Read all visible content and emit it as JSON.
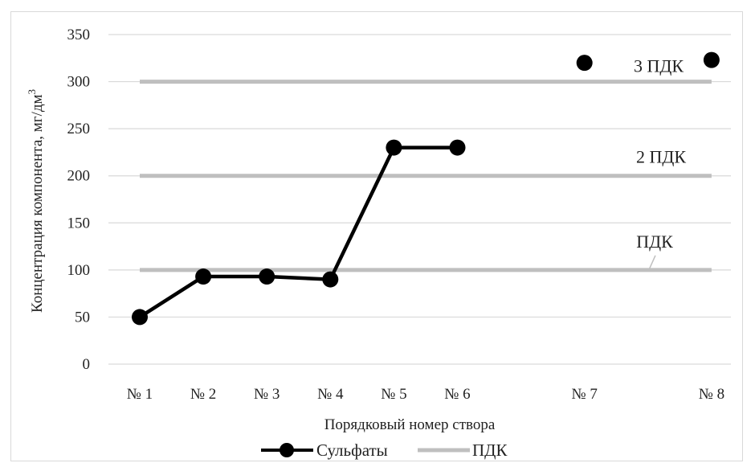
{
  "chart_data": {
    "type": "line",
    "categories": [
      "№ 1",
      "№ 2",
      "№ 3",
      "№ 4",
      "№ 5",
      "№ 6",
      "№ 7",
      "№ 8"
    ],
    "x_positions": [
      1,
      2,
      3,
      4,
      5,
      6,
      8,
      10
    ],
    "xlabel": "Порядковый номер створа",
    "ylabel_main": "Концентрация  компонента, мг/дм",
    "ylabel_sup": "3",
    "ylim": [
      0,
      350
    ],
    "yticks": [
      0,
      50,
      100,
      150,
      200,
      250,
      300,
      350
    ],
    "grid": true,
    "legend_position": "bottom",
    "series": [
      {
        "name": "Сульфаты",
        "color": "#000000",
        "points": [
          {
            "cat": "№ 1",
            "y": 50
          },
          {
            "cat": "№ 2",
            "y": 93
          },
          {
            "cat": "№ 3",
            "y": 93
          },
          {
            "cat": "№ 4",
            "y": 90
          },
          {
            "cat": "№ 5",
            "y": 230
          },
          {
            "cat": "№ 6",
            "y": 230
          },
          {
            "cat": "№ 7",
            "y": 320
          },
          {
            "cat": "№ 8",
            "y": 323
          }
        ],
        "connected_until": "№ 6"
      },
      {
        "name": "ПДК",
        "color": "#bfbfbf",
        "levels": [
          100,
          200,
          300
        ]
      }
    ],
    "annotations": [
      {
        "text": "ПДК",
        "y": 100
      },
      {
        "text": "2 ПДК",
        "y": 200
      },
      {
        "text": "3 ПДК",
        "y": 300
      }
    ]
  }
}
